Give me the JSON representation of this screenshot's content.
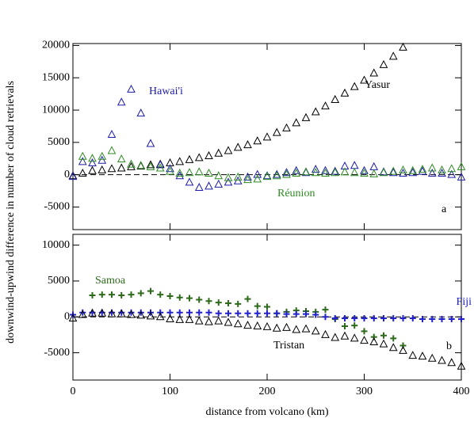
{
  "chart_data": [
    {
      "type": "scatter",
      "label": "a",
      "ylabel": "downwind-upwind difference in number of cloud retrievals",
      "x": [
        0,
        10,
        20,
        30,
        40,
        50,
        60,
        70,
        80,
        90,
        100,
        110,
        120,
        130,
        140,
        150,
        160,
        170,
        180,
        190,
        200,
        210,
        220,
        230,
        240,
        250,
        260,
        270,
        280,
        290,
        300,
        310,
        320,
        330,
        340,
        350,
        360,
        370,
        380,
        390,
        400
      ],
      "xlim": [
        0,
        400
      ],
      "xticks": [
        0,
        100,
        200,
        300,
        400
      ],
      "ylim": [
        -8500,
        20300
      ],
      "yticks": [
        -5000,
        0,
        5000,
        10000,
        15000,
        20000
      ],
      "series": [
        {
          "name": "Yasur",
          "color": "#000000",
          "marker": "triangle",
          "values": [
            -200,
            200,
            600,
            700,
            900,
            1000,
            1200,
            1300,
            1500,
            1600,
            1800,
            2000,
            2300,
            2600,
            2900,
            3300,
            3700,
            4200,
            4600,
            5200,
            5800,
            6500,
            7200,
            8000,
            8800,
            9700,
            10600,
            11600,
            12600,
            13600,
            14600,
            15700,
            17000,
            18300,
            19700,
            null,
            null,
            null,
            null,
            null,
            null
          ]
        },
        {
          "name": "Hawai'i",
          "color": "#1c1ca8",
          "marker": "triangle",
          "values": [
            -300,
            2000,
            1800,
            2200,
            6200,
            11200,
            13200,
            9500,
            4800,
            1500,
            900,
            -200,
            -1200,
            -2000,
            -1800,
            -1500,
            -1200,
            -1000,
            -400,
            0,
            -200,
            0,
            300,
            600,
            300,
            800,
            600,
            500,
            1300,
            1400,
            600,
            1200,
            400,
            300,
            200,
            300,
            500,
            200,
            200,
            0,
            -400
          ]
        },
        {
          "name": "Réunion",
          "color": "#2e8b22",
          "marker": "triangle",
          "values": [
            null,
            2800,
            2500,
            2800,
            3700,
            2400,
            1600,
            1400,
            1200,
            1000,
            500,
            200,
            300,
            400,
            200,
            -200,
            -500,
            -400,
            -800,
            -700,
            -300,
            -200,
            0,
            200,
            400,
            300,
            200,
            300,
            400,
            300,
            200,
            100,
            300,
            500,
            700,
            600,
            800,
            1000,
            700,
            900,
            1200
          ]
        }
      ]
    },
    {
      "type": "scatter",
      "label": "b",
      "xlabel": "distance from volcano  (km)",
      "x": [
        0,
        10,
        20,
        30,
        40,
        50,
        60,
        70,
        80,
        90,
        100,
        110,
        120,
        130,
        140,
        150,
        160,
        170,
        180,
        190,
        200,
        210,
        220,
        230,
        240,
        250,
        260,
        270,
        280,
        290,
        300,
        310,
        320,
        330,
        340,
        350,
        360,
        370,
        380,
        390,
        400
      ],
      "xlim": [
        0,
        400
      ],
      "xticks": [
        0,
        100,
        200,
        300,
        400
      ],
      "ylim": [
        -8800,
        11500
      ],
      "yticks": [
        -5000,
        0,
        5000,
        10000
      ],
      "series": [
        {
          "name": "Samoa",
          "color": "#2d6a1a",
          "marker": "plus",
          "values": [
            null,
            null,
            3000,
            3100,
            3100,
            3000,
            3100,
            3300,
            3600,
            3100,
            2900,
            2700,
            2600,
            2400,
            2200,
            2000,
            1900,
            1800,
            2500,
            1500,
            1400,
            500,
            700,
            900,
            800,
            700,
            1000,
            -300,
            -1300,
            -1200,
            -2000,
            -2800,
            -2600,
            -3000,
            -4000,
            null,
            null,
            null,
            null,
            null,
            null
          ]
        },
        {
          "name": "Fiji",
          "color": "#2222cc",
          "marker": "plus",
          "values": [
            300,
            600,
            600,
            600,
            600,
            600,
            600,
            600,
            600,
            600,
            600,
            600,
            600,
            600,
            600,
            500,
            500,
            500,
            500,
            500,
            500,
            500,
            400,
            400,
            400,
            300,
            0,
            -200,
            -200,
            -200,
            -200,
            -200,
            -200,
            -200,
            -200,
            -200,
            -300,
            -300,
            -300,
            -300,
            -300
          ]
        },
        {
          "name": "Tristan",
          "color": "#000000",
          "marker": "triangle",
          "values": [
            -200,
            300,
            500,
            500,
            400,
            400,
            300,
            200,
            100,
            0,
            -300,
            -400,
            -400,
            -600,
            -700,
            -600,
            -800,
            -1000,
            -1200,
            -1300,
            -1400,
            -1600,
            -1500,
            -1800,
            -1700,
            -2000,
            -2500,
            -2900,
            -2700,
            -3000,
            -3300,
            -3500,
            -3800,
            -4300,
            -4700,
            -5400,
            -5500,
            -5800,
            -6100,
            -6400,
            -6900
          ]
        }
      ]
    }
  ]
}
